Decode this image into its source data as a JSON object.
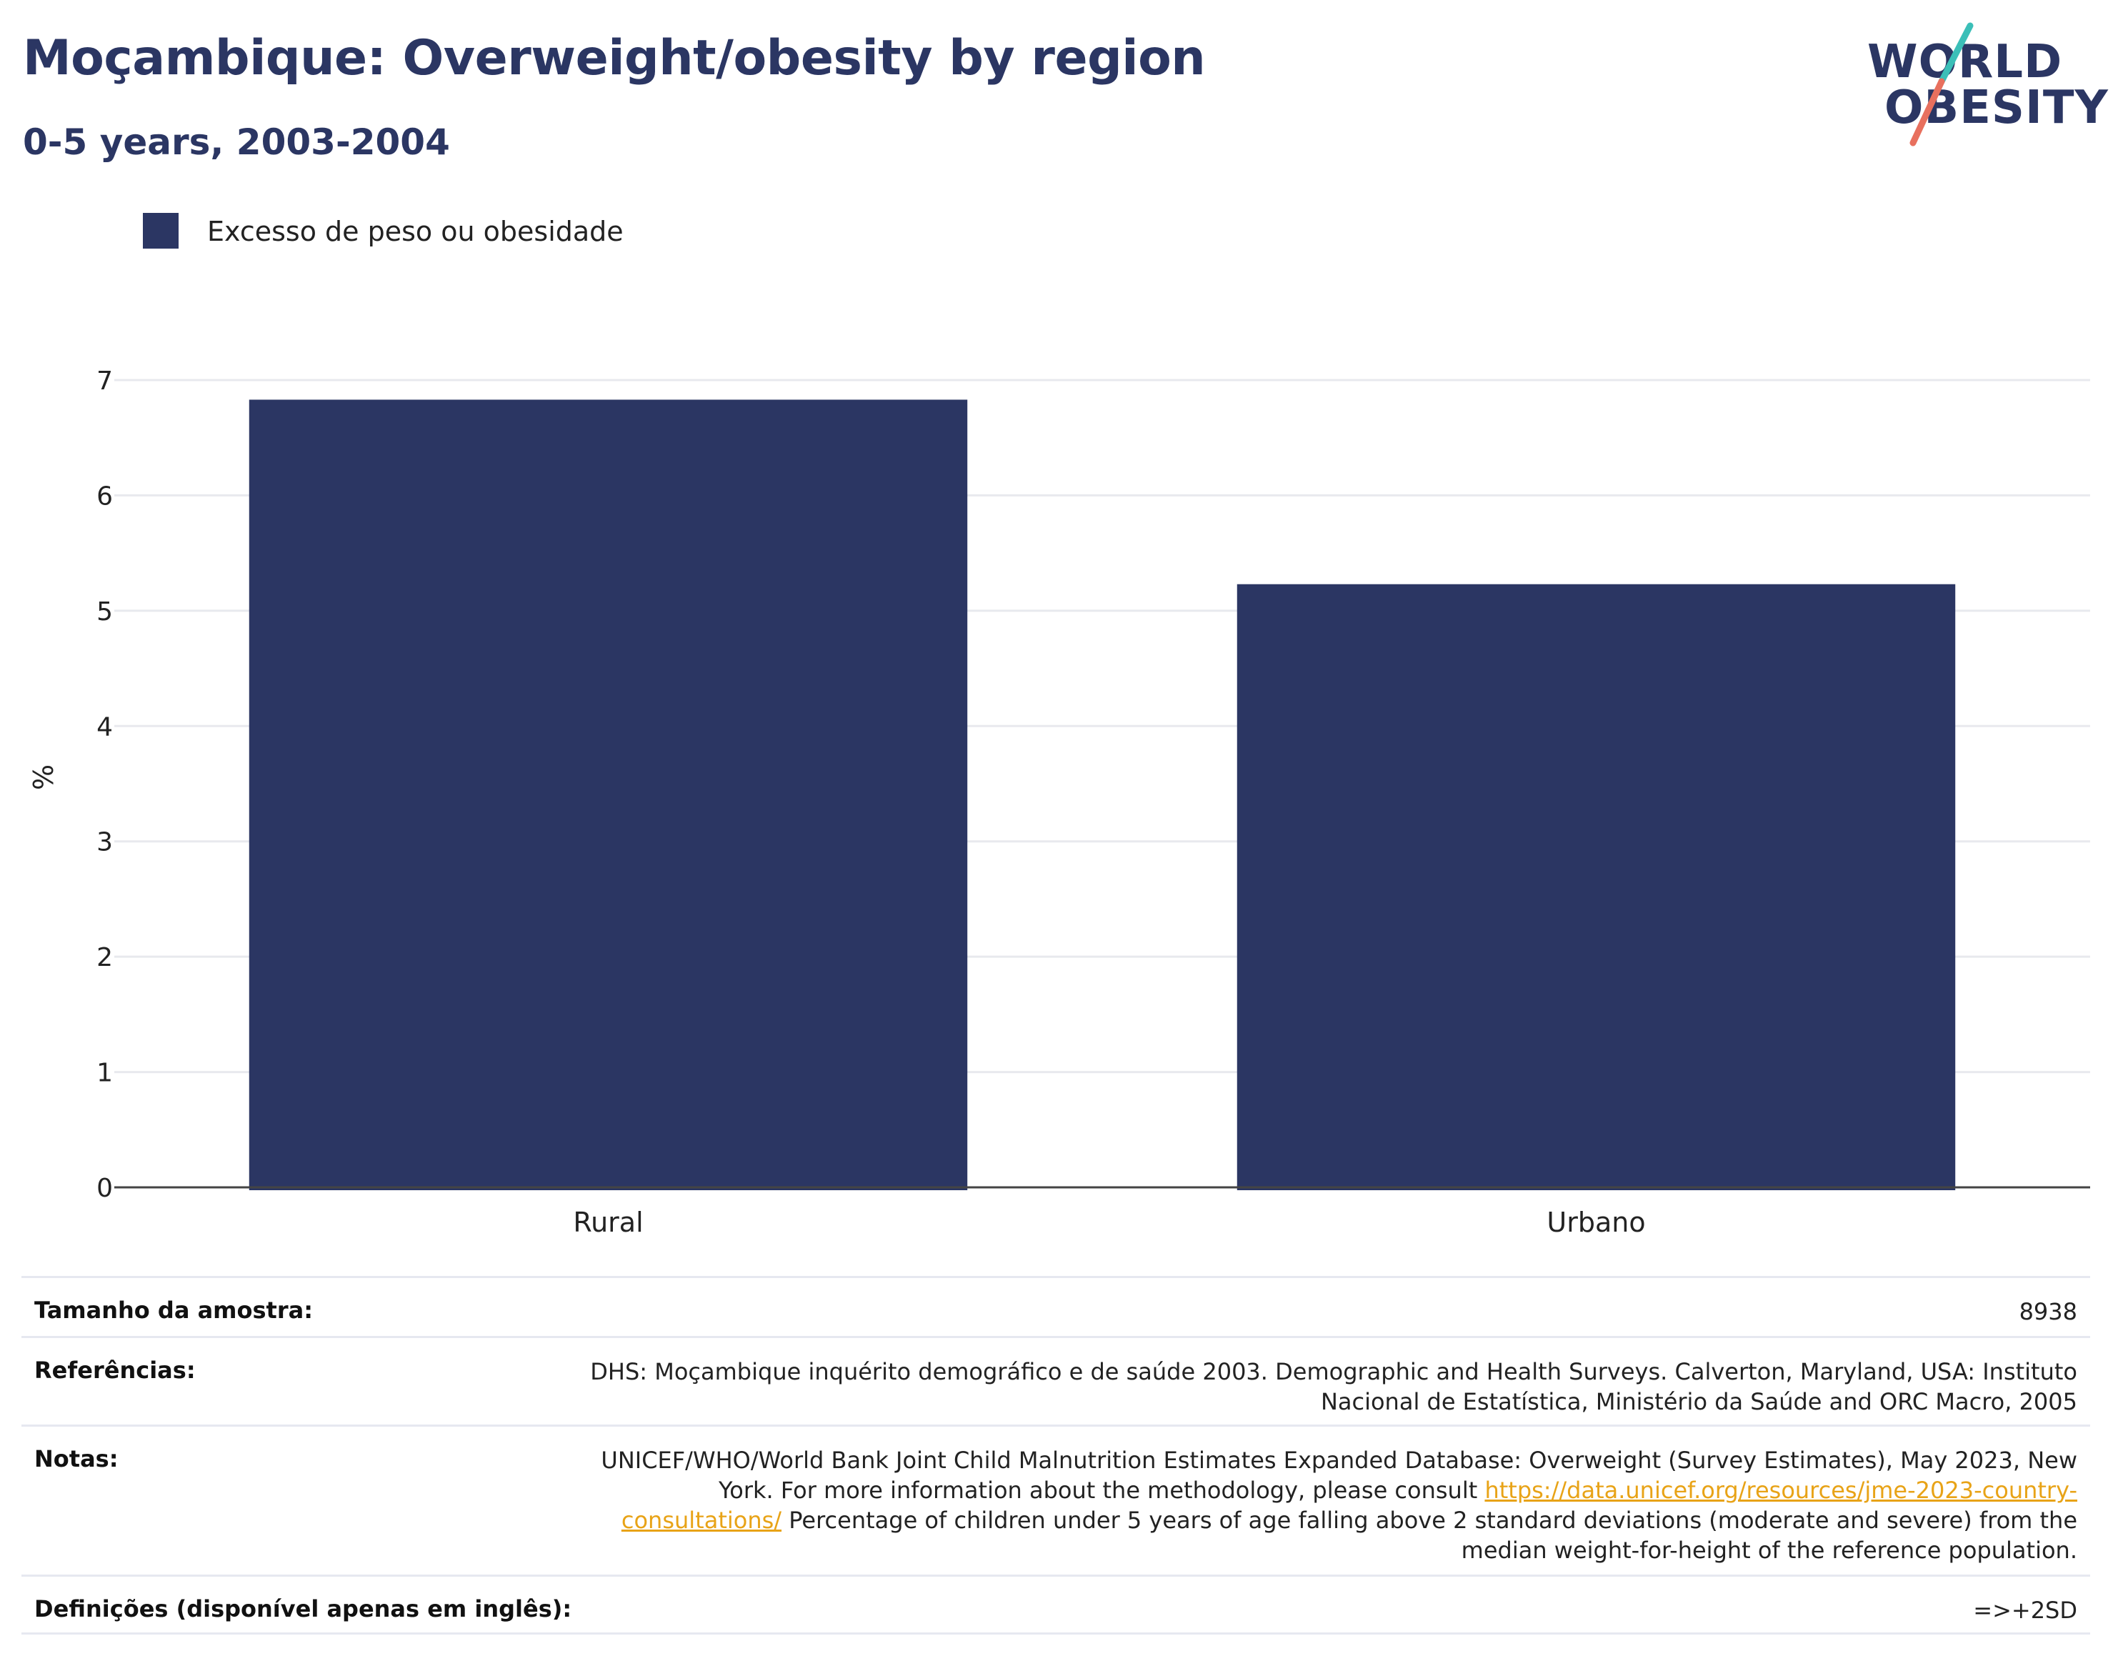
{
  "header": {
    "title": "Moçambique: Overweight/obesity by region",
    "subtitle": "0-5 years, 2003-2004"
  },
  "logo": {
    "line1": "WORLD",
    "line2": "OBESITY",
    "text_color": "#2b3663",
    "slash_colors": [
      "#3bbfb8",
      "#e8705e"
    ]
  },
  "legend": {
    "items": [
      {
        "label": "Excesso de peso ou obesidade",
        "color": "#2b3663"
      }
    ]
  },
  "chart_data": {
    "type": "bar",
    "title": "Moçambique: Overweight/obesity by region",
    "subtitle": "0-5 years, 2003-2004",
    "categories": [
      "Rural",
      "Urbano"
    ],
    "series": [
      {
        "name": "Excesso de peso ou obesidade",
        "values": [
          6.83,
          5.23
        ],
        "color": "#2b3663"
      }
    ],
    "xlabel": "",
    "ylabel": "%",
    "ylim": [
      0,
      7
    ],
    "yticks": [
      0,
      1,
      2,
      3,
      4,
      5,
      6,
      7
    ],
    "grid": true,
    "legend_position": "top-left"
  },
  "info_table": [
    {
      "label": "Tamanho da amostra:",
      "value": "8938"
    },
    {
      "label": "Referências:",
      "value": "DHS: Moçambique inquérito demográfico e de saúde 2003. Demographic and Health Surveys. Calverton, Maryland, USA: Instituto Nacional de Estatística, Ministério da Saúde and ORC Macro, 2005"
    },
    {
      "label": "Notas:",
      "value_before_link": "UNICEF/WHO/World Bank Joint Child Malnutrition Estimates Expanded Database: Overweight (Survey Estimates), May 2023, New York. For more information about the methodology, please consult ",
      "link": "https://data.unicef.org/resources/jme-2023-country-consultations/",
      "value_after_link": " Percentage of children under 5 years of age falling above 2 standard deviations (moderate and severe) from the median weight-for-height of the reference population."
    },
    {
      "label": "Definições (disponível apenas em inglês):",
      "value": "=>+2SD"
    }
  ]
}
